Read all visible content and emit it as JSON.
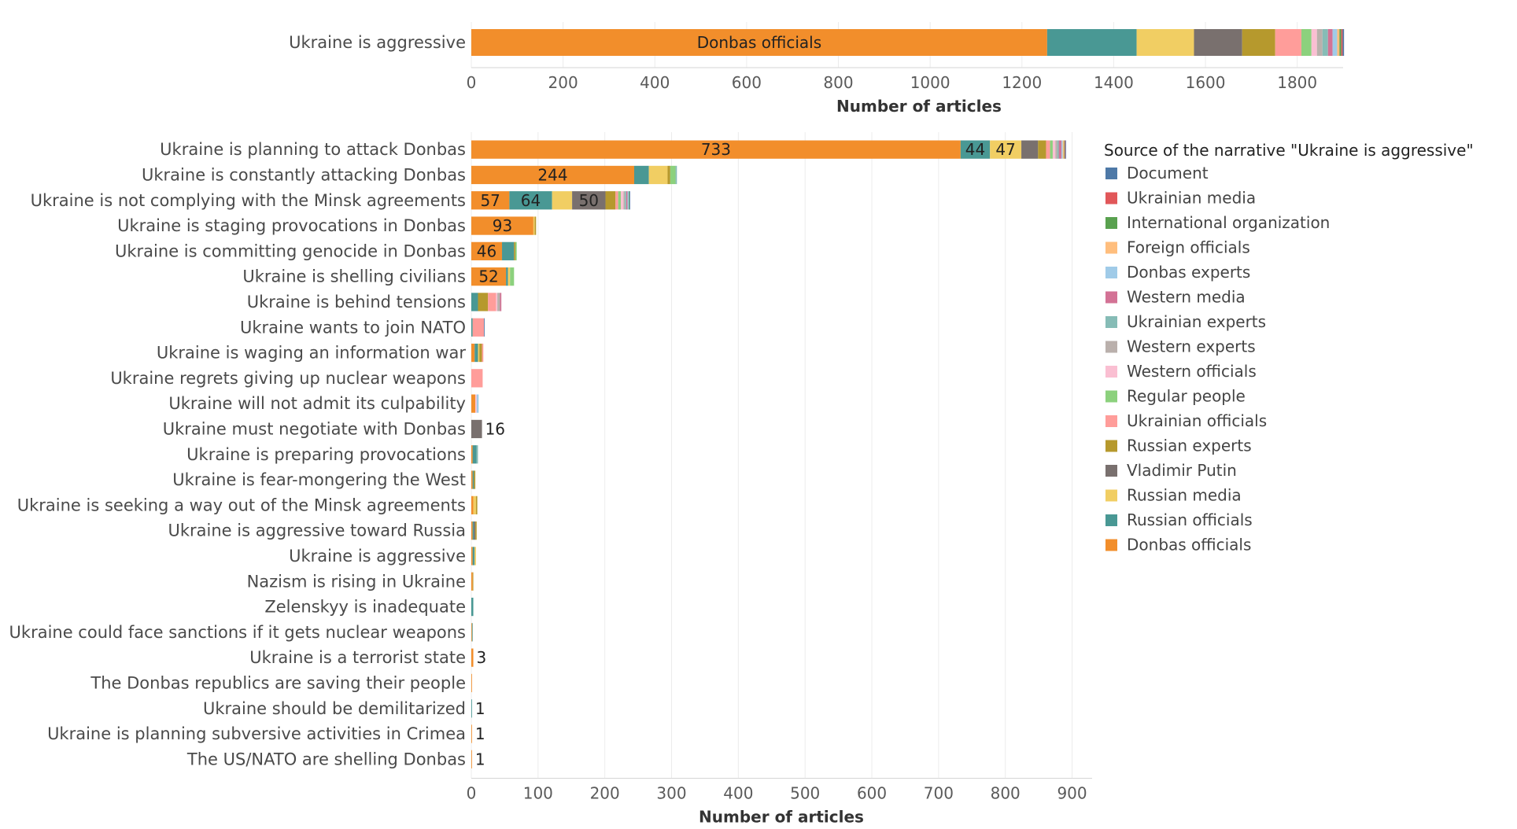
{
  "chart_data": [
    {
      "type": "bar",
      "orientation": "horizontal",
      "stacked": true,
      "categories": [
        "Ukraine is aggressive"
      ],
      "xlabel": "Number of articles",
      "xticks": [
        0,
        200,
        400,
        600,
        800,
        1000,
        1200,
        1400,
        1600,
        1800
      ],
      "xlim": [
        0,
        1900
      ],
      "series": [
        {
          "name": "Donbas officials",
          "values": [
            1255
          ]
        },
        {
          "name": "Russian officials",
          "values": [
            195
          ]
        },
        {
          "name": "Russian media",
          "values": [
            125
          ]
        },
        {
          "name": "Vladimir Putin",
          "values": [
            105
          ]
        },
        {
          "name": "Russian experts",
          "values": [
            72
          ]
        },
        {
          "name": "Ukrainian officials",
          "values": [
            57
          ]
        },
        {
          "name": "Regular people",
          "values": [
            22
          ]
        },
        {
          "name": "Western officials",
          "values": [
            12
          ]
        },
        {
          "name": "Western experts",
          "values": [
            12
          ]
        },
        {
          "name": "Ukrainian experts",
          "values": [
            12
          ]
        },
        {
          "name": "Western media",
          "values": [
            10
          ]
        },
        {
          "name": "Donbas experts",
          "values": [
            10
          ]
        },
        {
          "name": "Foreign officials",
          "values": [
            5
          ]
        },
        {
          "name": "International organization",
          "values": [
            4
          ]
        },
        {
          "name": "Ukrainian media",
          "values": [
            3
          ]
        },
        {
          "name": "Document",
          "values": [
            3
          ]
        }
      ],
      "data_labels": [
        {
          "series": "Donbas officials",
          "category": "Ukraine is aggressive",
          "text": "Donbas officials"
        }
      ]
    },
    {
      "type": "bar",
      "orientation": "horizontal",
      "stacked": true,
      "categories": [
        "Ukraine is planning to attack Donbas",
        "Ukraine is constantly attacking Donbas",
        "Ukraine is not complying with the Minsk agreements",
        "Ukraine is staging provocations in Donbas",
        "Ukraine is committing genocide in Donbas",
        "Ukraine is shelling civilians",
        "Ukraine is behind tensions",
        "Ukraine wants to join NATO",
        "Ukraine is waging an information war",
        "Ukraine regrets giving up nuclear weapons",
        "Ukraine will not admit its culpability",
        "Ukraine must negotiate with Donbas",
        "Ukraine is preparing provocations",
        "Ukraine is fear-mongering the West",
        "Ukraine is seeking a way out of the Minsk agreements",
        "Ukraine is aggressive toward Russia",
        "Ukraine is aggressive",
        "Nazism is rising in Ukraine",
        "Zelenskyy is inadequate",
        "Ukraine could face sanctions if it gets nuclear weapons",
        "Ukraine is a terrorist state",
        "The Donbas republics are saving their people",
        "Ukraine should be demilitarized",
        "Ukraine is planning subversive activities in Crimea",
        "The US/NATO are shelling Donbas"
      ],
      "xlabel": "Number of articles",
      "xticks": [
        0,
        100,
        200,
        300,
        400,
        500,
        600,
        700,
        800,
        900
      ],
      "xlim": [
        0,
        930
      ],
      "series": [
        {
          "name": "Donbas officials",
          "values": [
            733,
            244,
            57,
            93,
            46,
            52,
            0,
            0,
            5,
            0,
            6,
            0,
            2,
            2,
            3,
            2,
            2,
            2,
            0,
            1,
            3,
            1,
            0,
            1,
            1
          ]
        },
        {
          "name": "Russian officials",
          "values": [
            44,
            22,
            64,
            0,
            18,
            3,
            10,
            2,
            5,
            0,
            0,
            0,
            6,
            2,
            0,
            2,
            3,
            0,
            3,
            1,
            0,
            0,
            1,
            0,
            0
          ]
        },
        {
          "name": "Russian media",
          "values": [
            47,
            28,
            30,
            2,
            0,
            3,
            0,
            0,
            2,
            0,
            0,
            0,
            0,
            0,
            4,
            0,
            2,
            0,
            0,
            0,
            0,
            0,
            0,
            0,
            0
          ]
        },
        {
          "name": "Vladimir Putin",
          "values": [
            25,
            0,
            50,
            0,
            0,
            0,
            0,
            0,
            0,
            0,
            0,
            16,
            0,
            0,
            0,
            2,
            0,
            0,
            0,
            0,
            0,
            0,
            0,
            0,
            0
          ]
        },
        {
          "name": "Russian experts",
          "values": [
            12,
            4,
            15,
            2,
            2,
            0,
            15,
            0,
            4,
            0,
            0,
            0,
            0,
            2,
            2,
            2,
            0,
            1,
            0,
            0,
            0,
            0,
            0,
            0,
            0
          ]
        },
        {
          "name": "Ukrainian officials",
          "values": [
            6,
            0,
            4,
            0,
            0,
            0,
            12,
            17,
            2,
            17,
            0,
            0,
            0,
            0,
            0,
            0,
            0,
            0,
            0,
            0,
            0,
            0,
            0,
            0,
            0
          ]
        },
        {
          "name": "Regular people",
          "values": [
            4,
            8,
            4,
            0,
            2,
            6,
            0,
            0,
            0,
            0,
            0,
            0,
            0,
            0,
            0,
            0,
            0,
            0,
            0,
            0,
            0,
            0,
            0,
            0,
            0
          ]
        },
        {
          "name": "Western officials",
          "values": [
            4,
            0,
            4,
            0,
            0,
            0,
            2,
            0,
            0,
            0,
            2,
            0,
            0,
            0,
            0,
            0,
            0,
            0,
            0,
            0,
            0,
            0,
            0,
            0,
            0
          ]
        },
        {
          "name": "Western experts",
          "values": [
            3,
            0,
            2,
            0,
            0,
            0,
            4,
            0,
            0,
            0,
            0,
            0,
            0,
            0,
            0,
            0,
            0,
            0,
            0,
            0,
            0,
            0,
            0,
            0,
            0
          ]
        },
        {
          "name": "Ukrainian experts",
          "values": [
            2,
            2,
            2,
            0,
            0,
            0,
            0,
            0,
            0,
            0,
            0,
            0,
            2,
            0,
            0,
            0,
            0,
            0,
            0,
            0,
            0,
            0,
            0,
            0,
            0
          ]
        },
        {
          "name": "Western media",
          "values": [
            4,
            0,
            2,
            0,
            0,
            0,
            2,
            0,
            0,
            0,
            0,
            0,
            0,
            0,
            0,
            0,
            0,
            0,
            0,
            0,
            0,
            0,
            0,
            0,
            0
          ]
        },
        {
          "name": "Donbas experts",
          "values": [
            2,
            0,
            2,
            0,
            0,
            0,
            0,
            0,
            0,
            0,
            3,
            0,
            0,
            0,
            0,
            0,
            0,
            0,
            0,
            0,
            0,
            0,
            0,
            0,
            0
          ]
        },
        {
          "name": "Foreign officials",
          "values": [
            2,
            0,
            0,
            0,
            0,
            0,
            0,
            0,
            0,
            0,
            0,
            0,
            0,
            0,
            0,
            0,
            0,
            0,
            0,
            0,
            0,
            0,
            0,
            0,
            0
          ]
        },
        {
          "name": "International organization",
          "values": [
            1,
            0,
            1,
            0,
            0,
            0,
            0,
            0,
            0,
            0,
            0,
            0,
            0,
            0,
            0,
            0,
            0,
            0,
            0,
            0,
            0,
            0,
            0,
            0,
            0
          ]
        },
        {
          "name": "Ukrainian media",
          "values": [
            1,
            0,
            0,
            0,
            0,
            0,
            0,
            0,
            0,
            0,
            0,
            0,
            0,
            0,
            0,
            0,
            0,
            0,
            0,
            0,
            0,
            0,
            0,
            0,
            0
          ]
        },
        {
          "name": "Document",
          "values": [
            1,
            0,
            1,
            0,
            0,
            0,
            0,
            1,
            0,
            0,
            0,
            0,
            0,
            0,
            0,
            0,
            0,
            0,
            0,
            0,
            0,
            0,
            0,
            0,
            0
          ]
        }
      ],
      "data_labels": [
        {
          "series": "Donbas officials",
          "category": "Ukraine is planning to attack Donbas",
          "text": "733"
        },
        {
          "series": "Russian officials",
          "category": "Ukraine is planning to attack Donbas",
          "text": "44"
        },
        {
          "series": "Russian media",
          "category": "Ukraine is planning to attack Donbas",
          "text": "47"
        },
        {
          "series": "Donbas officials",
          "category": "Ukraine is constantly attacking Donbas",
          "text": "244"
        },
        {
          "series": "Donbas officials",
          "category": "Ukraine is not complying with the Minsk agreements",
          "text": "57"
        },
        {
          "series": "Russian officials",
          "category": "Ukraine is not complying with the Minsk agreements",
          "text": "64"
        },
        {
          "series": "Vladimir Putin",
          "category": "Ukraine is not complying with the Minsk agreements",
          "text": "50"
        },
        {
          "series": "Donbas officials",
          "category": "Ukraine is staging provocations in Donbas",
          "text": "93"
        },
        {
          "series": "Donbas officials",
          "category": "Ukraine is committing genocide in Donbas",
          "text": "46"
        },
        {
          "series": "Donbas officials",
          "category": "Ukraine is shelling civilians",
          "text": "52"
        },
        {
          "series": "Vladimir Putin",
          "category": "Ukraine must negotiate with Donbas",
          "text": "16",
          "outside": true
        },
        {
          "series": "Donbas officials",
          "category": "Ukraine is a terrorist state",
          "text": "3",
          "outside": true
        },
        {
          "series": "Russian officials",
          "category": "Ukraine should be demilitarized",
          "text": "1",
          "outside": true
        },
        {
          "series": "Donbas officials",
          "category": "Ukraine is planning subversive activities in Crimea",
          "text": "1",
          "outside": true
        },
        {
          "series": "Donbas officials",
          "category": "The US/NATO are shelling Donbas",
          "text": "1",
          "outside": true
        }
      ]
    }
  ],
  "legend": {
    "title": "Source of the narrative \"Ukraine is aggressive\"",
    "placement": "right",
    "items": [
      {
        "label": "Document",
        "color": "#4e79a7"
      },
      {
        "label": "Ukrainian media",
        "color": "#e15759"
      },
      {
        "label": "International organization",
        "color": "#59a14f"
      },
      {
        "label": "Foreign officials",
        "color": "#ffbe7d"
      },
      {
        "label": "Donbas experts",
        "color": "#a0cbe8"
      },
      {
        "label": "Western media",
        "color": "#d37295"
      },
      {
        "label": "Ukrainian experts",
        "color": "#86bcb6"
      },
      {
        "label": "Western experts",
        "color": "#bab0ac"
      },
      {
        "label": "Western officials",
        "color": "#fabfd2"
      },
      {
        "label": "Regular people",
        "color": "#8cd17d"
      },
      {
        "label": "Ukrainian officials",
        "color": "#ff9d9a"
      },
      {
        "label": "Russian experts",
        "color": "#b6992d"
      },
      {
        "label": "Vladimir Putin",
        "color": "#79706e"
      },
      {
        "label": "Russian media",
        "color": "#f1ce63"
      },
      {
        "label": "Russian officials",
        "color": "#499894"
      },
      {
        "label": "Donbas officials",
        "color": "#f28e2b"
      }
    ]
  }
}
